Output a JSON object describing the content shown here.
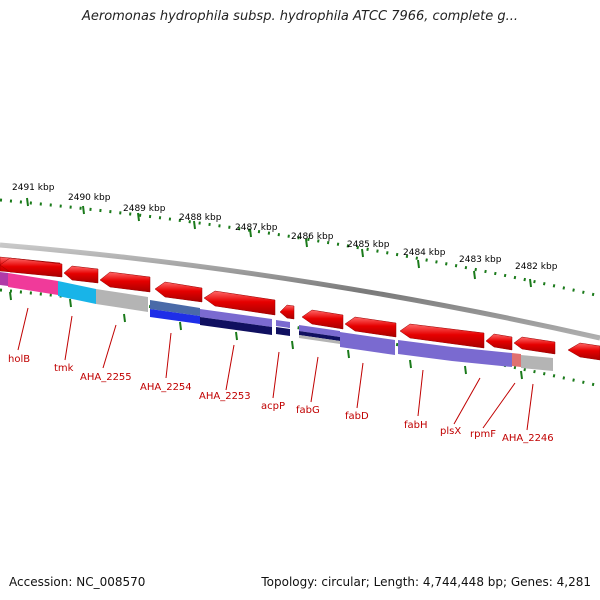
{
  "header": {
    "title": "Aeromonas hydrophila subsp. hydrophila ATCC 7966, complete g..."
  },
  "ruler": {
    "labels": [
      "2491 kbp",
      "2490 kbp",
      "2489 kbp",
      "2488 kbp",
      "2487 kbp",
      "2486 kbp",
      "2485 kbp",
      "2484 kbp",
      "2483 kbp",
      "2482 kbp"
    ]
  },
  "genes": [
    {
      "name": "holB"
    },
    {
      "name": "tmk"
    },
    {
      "name": "AHA_2255"
    },
    {
      "name": "AHA_2254"
    },
    {
      "name": "AHA_2253"
    },
    {
      "name": "acpP"
    },
    {
      "name": "fabG"
    },
    {
      "name": "fabD"
    },
    {
      "name": "fabH"
    },
    {
      "name": "plsX"
    },
    {
      "name": "rpmF"
    },
    {
      "name": "AHA_2246"
    }
  ],
  "footer": {
    "accession": "Accession: NC_008570",
    "summary": "Topology: circular; Length: 4,744,448 bp; Genes: 4,281"
  },
  "colors": {
    "gene_red": "#e60000",
    "backbone": "#808080",
    "tick_green": "#1a7a1a",
    "label_red": "#c00000",
    "pink": "#f03a9a",
    "cyan": "#18b4e8",
    "gray": "#b4b4b4",
    "blue": "#1e2ee8",
    "steel_blue": "#4a6aa8",
    "navy": "#101060",
    "lavender": "#7a6ad0",
    "salmon": "#e07070"
  }
}
